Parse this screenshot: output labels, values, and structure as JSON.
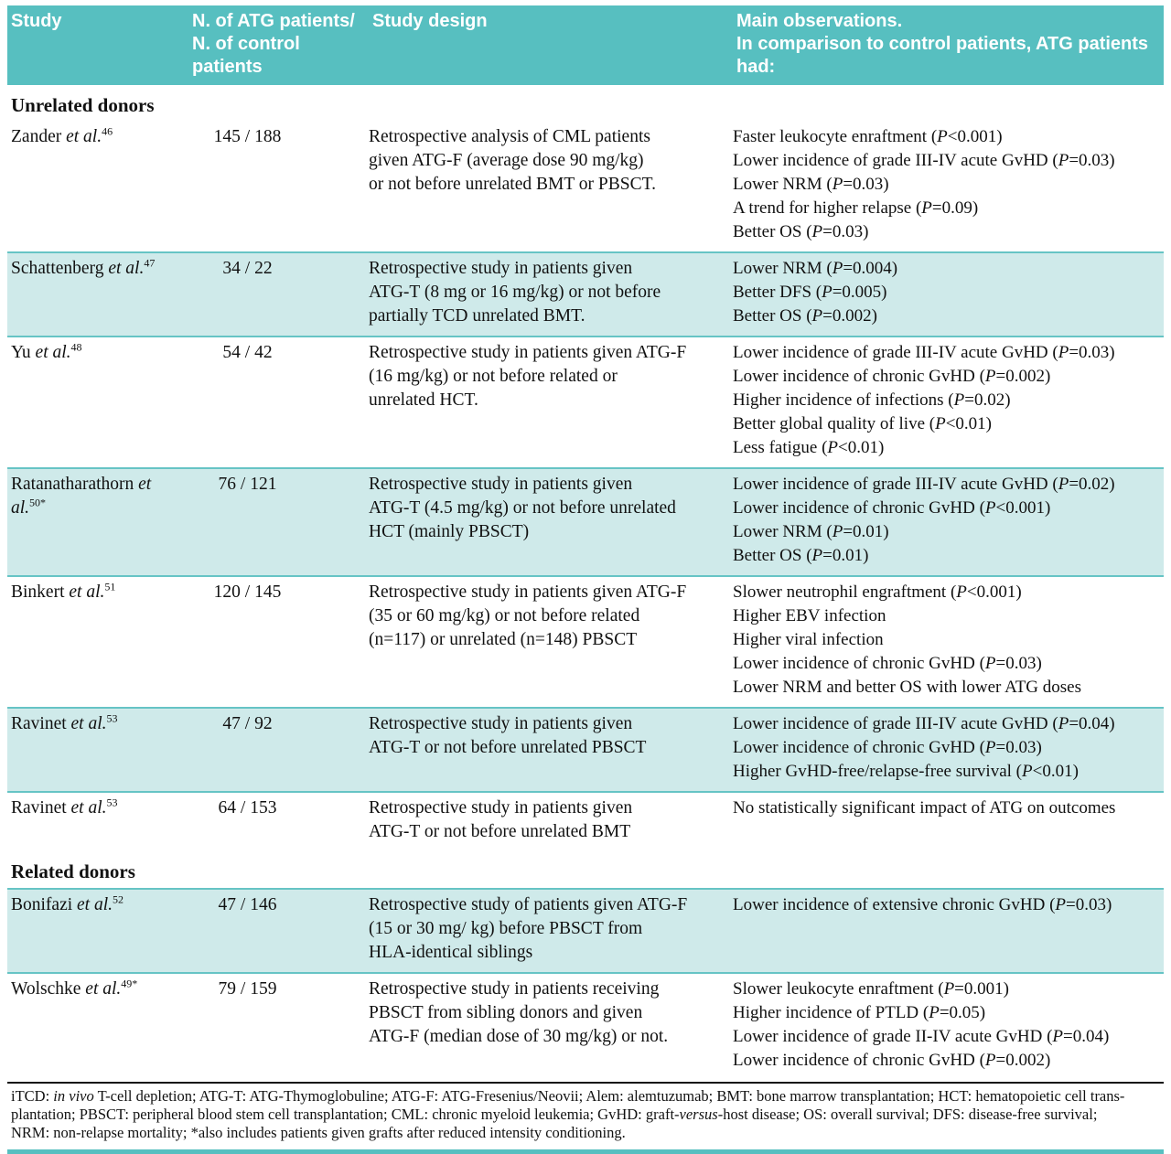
{
  "header": {
    "col_study": "Study",
    "col_n": "N. of ATG patients/\nN. of control patients",
    "col_design": "Study design",
    "col_obs": "Main observations.\nIn comparison to control patients, ATG patients had:"
  },
  "colors": {
    "header_bg": "#57bfc0",
    "band_bg": "#cfeaea",
    "band_border": "#66c4c5",
    "text": "#111111"
  },
  "rows": [
    {
      "type": "section",
      "label": "Unrelated donors"
    },
    {
      "type": "study",
      "shaded": false,
      "name": "Zander",
      "etal": "et al.",
      "ref": "46",
      "n": "145 / 188",
      "design": "Retrospective analysis of CML patients\ngiven ATG-F (average dose 90 mg/kg)\nor not before unrelated BMT or PBSCT.",
      "observations": [
        "Faster leukocyte enraftment (P<0.001)",
        "Lower incidence of grade III-IV acute GvHD  (P=0.03)",
        "Lower NRM (P=0.03)",
        "A trend for higher relapse (P=0.09)",
        "Better OS (P=0.03)"
      ]
    },
    {
      "type": "study",
      "shaded": true,
      "name": "Schattenberg",
      "etal": "et al.",
      "ref": "47",
      "n": "34 / 22",
      "design": "Retrospective study in patients given\nATG-T (8 mg or 16 mg/kg) or not before\npartially TCD unrelated BMT.",
      "observations": [
        "Lower NRM (P=0.004)",
        "Better DFS (P=0.005)",
        "Better OS (P=0.002)"
      ]
    },
    {
      "type": "study",
      "shaded": false,
      "name": "Yu",
      "etal": "et al.",
      "ref": "48",
      "n": "54 / 42",
      "design": "Retrospective study in patients given ATG-F\n(16 mg/kg) or not before related or\nunrelated HCT.",
      "observations": [
        "Lower incidence of grade III-IV acute GvHD  (P=0.03)",
        "Lower incidence of chronic GvHD  (P=0.002)",
        "Higher incidence of infections (P=0.02)",
        "Better global quality of live (P<0.01)",
        "Less fatigue (P<0.01)"
      ]
    },
    {
      "type": "study",
      "shaded": true,
      "name": "Ratanatharathorn",
      "etal": "et al.",
      "ref": "50*",
      "n": "76 / 121",
      "design": "Retrospective study in patients given\nATG-T (4.5 mg/kg) or not before unrelated\nHCT (mainly PBSCT)",
      "observations": [
        "Lower incidence of grade III-IV acute GvHD  (P=0.02)",
        "Lower incidence of chronic GvHD  (P<0.001)",
        "Lower NRM (P=0.01)",
        "Better OS (P=0.01)"
      ]
    },
    {
      "type": "study",
      "shaded": false,
      "name": "Binkert",
      "etal": "et al.",
      "ref": "51",
      "n": "120 / 145",
      "design": "Retrospective study in patients given ATG-F\n(35 or 60 mg/kg) or not before related\n(n=117) or unrelated (n=148) PBSCT",
      "observations": [
        "Slower neutrophil engraftment (P<0.001)",
        "Higher EBV infection",
        "Higher viral infection",
        "Lower incidence of chronic GvHD (P=0.03)",
        "Lower NRM and better OS with lower ATG doses"
      ]
    },
    {
      "type": "study",
      "shaded": true,
      "name": "Ravinet",
      "etal": "et al.",
      "ref": "53",
      "n": "47 / 92",
      "design": "Retrospective study in patients given\nATG-T or not before unrelated PBSCT",
      "observations": [
        "Lower incidence of grade III-IV acute GvHD  (P=0.04)",
        "Lower incidence of chronic GvHD  (P=0.03)",
        "Higher GvHD-free/relapse-free survival (P<0.01)"
      ]
    },
    {
      "type": "study",
      "shaded": false,
      "name": "Ravinet",
      "etal": "et al.",
      "ref": "53",
      "n": "64 / 153",
      "design": "Retrospective study in patients given\nATG-T or not before unrelated BMT",
      "observations": [
        "No statistically significant impact of ATG on outcomes"
      ]
    },
    {
      "type": "section",
      "label": "Related donors"
    },
    {
      "type": "study",
      "shaded": true,
      "name": "Bonifazi",
      "etal": "et al.",
      "ref": "52",
      "n": "47 / 146",
      "design": "Retrospective study of patients given ATG-F\n(15 or 30 mg/ kg) before PBSCT from\nHLA-identical siblings",
      "observations": [
        "Lower incidence of extensive chronic GvHD  (P=0.03)"
      ]
    },
    {
      "type": "study",
      "shaded": false,
      "name": "Wolschke",
      "etal": "et al.",
      "ref": "49*",
      "n": "79 / 159",
      "design": "Retrospective study in patients receiving\nPBSCT from sibling donors and given\nATG-F (median dose of 30 mg/kg) or not.",
      "observations": [
        "Slower leukocyte enraftment (P=0.001)",
        "Higher incidence of PTLD (P=0.05)",
        "Lower incidence of grade II-IV acute GvHD  (P=0.04)",
        "Lower incidence of chronic GvHD  (P=0.002)"
      ]
    }
  ],
  "footnote": {
    "lines": [
      "iTCD: in vivo T-cell depletion; ATG-T: ATG-Thymoglobuline; ATG-F: ATG-Fresenius/Neovii; Alem: alemtuzumab; BMT: bone marrow transplantation; HCT: hematopoietic cell trans-",
      "plantation; PBSCT: peripheral blood stem cell transplantation; CML: chronic myeloid leukemia; GvHD: graft-versus-host disease; OS: overall survival; DFS: disease-free survival;",
      "NRM: non-relapse mortality;  *also includes patients given grafts after reduced intensity conditioning."
    ]
  }
}
